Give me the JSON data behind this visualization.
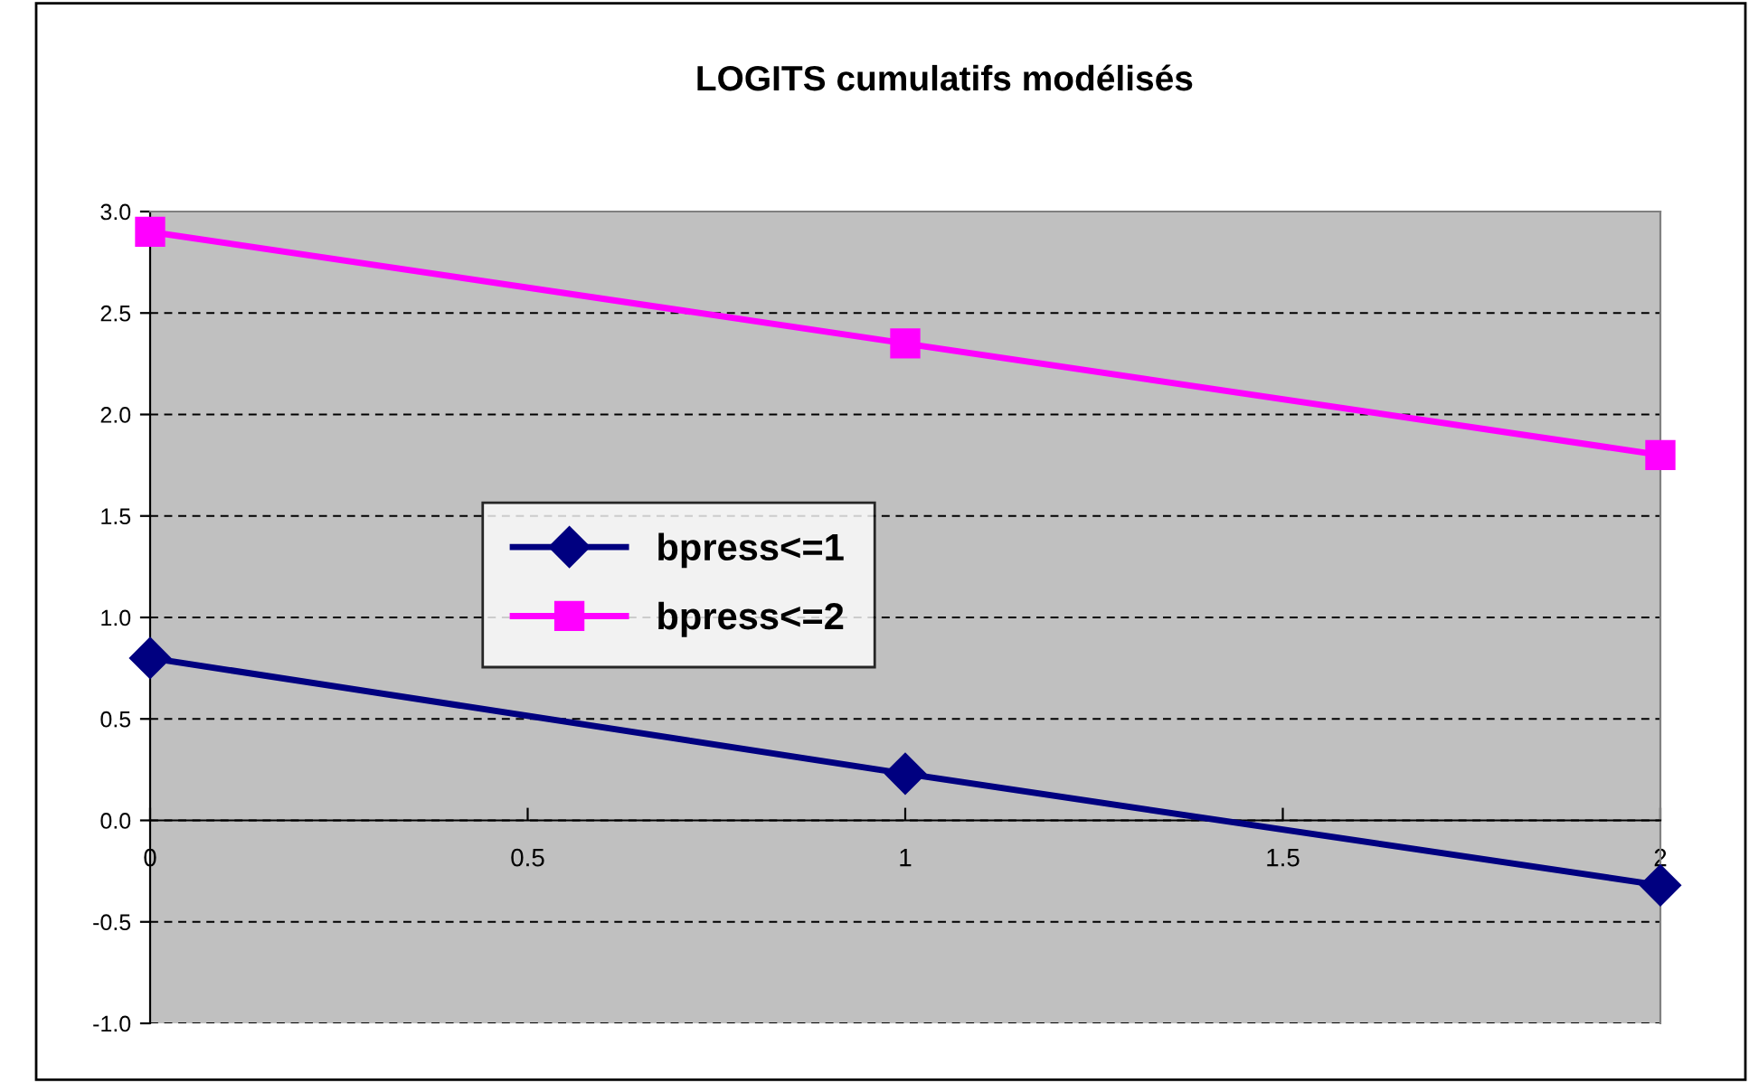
{
  "chart_data": {
    "type": "line",
    "title": "LOGITS cumulatifs modélisés",
    "x": [
      0,
      1,
      2
    ],
    "series": [
      {
        "name": "bpress<=1",
        "color": "#000080",
        "marker": "diamond",
        "values": [
          0.8,
          0.23,
          -0.32
        ]
      },
      {
        "name": "bpress<=2",
        "color": "#ff00ff",
        "marker": "square",
        "values": [
          2.9,
          2.35,
          1.8
        ]
      }
    ],
    "xlim": [
      0,
      2
    ],
    "xticks": [
      0,
      0.5,
      1,
      1.5,
      2
    ],
    "ylim": [
      -1,
      3
    ],
    "yticks": [
      {
        "value": -1,
        "label": "-1.0"
      },
      {
        "value": -0.5,
        "label": "-0.5"
      },
      {
        "value": 0,
        "label": "0.0"
      },
      {
        "value": 0.5,
        "label": "0.5"
      },
      {
        "value": 1,
        "label": "1.0"
      },
      {
        "value": 1.5,
        "label": "1.5"
      },
      {
        "value": 2,
        "label": "2.0"
      },
      {
        "value": 2.5,
        "label": "2.5"
      },
      {
        "value": 3,
        "label": "3.0"
      }
    ],
    "grid": "y",
    "legend": "center",
    "line_style": "solid"
  }
}
